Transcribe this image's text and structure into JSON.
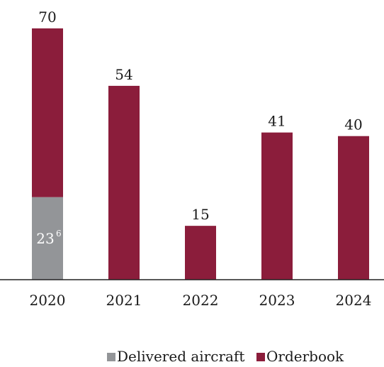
{
  "chart_data": {
    "type": "bar",
    "stacked": true,
    "categories": [
      "2020",
      "2021",
      "2022",
      "2023",
      "2024"
    ],
    "series": [
      {
        "name": "Delivered aircraft",
        "color": "#939598",
        "values": [
          23,
          0,
          0,
          0,
          0
        ]
      },
      {
        "name": "Orderbook",
        "color": "#8b1d3b",
        "values": [
          47,
          54,
          15,
          41,
          40
        ]
      }
    ],
    "totals": [
      "70",
      "54",
      "15",
      "41",
      "40"
    ],
    "inside_label": {
      "category": "2020",
      "value": "23",
      "superscript": "6"
    },
    "legend": [
      {
        "label": "Delivered aircraft",
        "color": "#939598"
      },
      {
        "label": "Orderbook",
        "color": "#8b1d3b"
      }
    ],
    "legend_position": "bottom-right",
    "ylim": [
      0,
      70
    ],
    "grid": false
  }
}
